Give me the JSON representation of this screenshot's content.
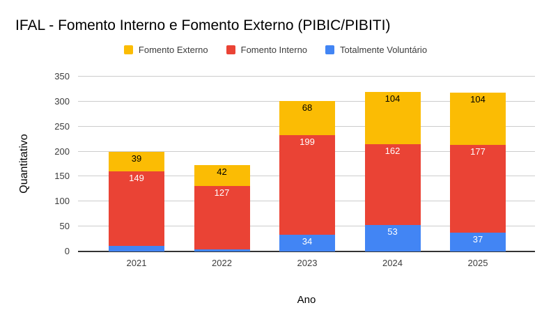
{
  "chart_data": {
    "type": "bar",
    "stacked": true,
    "title": "IFAL - Fomento Interno e Fomento Externo (PIBIC/PIBITI)",
    "xlabel": "Ano",
    "ylabel": "Quantitativo",
    "categories": [
      "2021",
      "2022",
      "2023",
      "2024",
      "2025"
    ],
    "series": [
      {
        "name": "Totalmente Voluntário",
        "color": "#4285F4",
        "label_color": "#ffffff",
        "values": [
          11,
          4,
          34,
          53,
          37
        ]
      },
      {
        "name": "Fomento Interno",
        "color": "#EA4335",
        "label_color": "#ffffff",
        "values": [
          149,
          127,
          199,
          162,
          177
        ]
      },
      {
        "name": "Fomento Externo",
        "color": "#FBBC04",
        "label_color": "#000000",
        "values": [
          39,
          42,
          68,
          104,
          104
        ]
      }
    ],
    "totals": [
      199,
      173,
      301,
      319,
      318
    ],
    "legend": {
      "position": "top",
      "items": [
        {
          "label": "Fomento Externo",
          "color": "#FBBC04"
        },
        {
          "label": "Fomento Interno",
          "color": "#EA4335"
        },
        {
          "label": "Totalmente Voluntário",
          "color": "#4285F4"
        }
      ]
    },
    "ylim": [
      0,
      350
    ],
    "yticks": [
      0,
      50,
      100,
      150,
      200,
      250,
      300,
      350
    ],
    "grid": true,
    "colors": {
      "background": "#ffffff",
      "gridline": "#cccccc",
      "axis_line": "#333333",
      "tick_label": "#3c3c3c",
      "title": "#000000"
    }
  }
}
